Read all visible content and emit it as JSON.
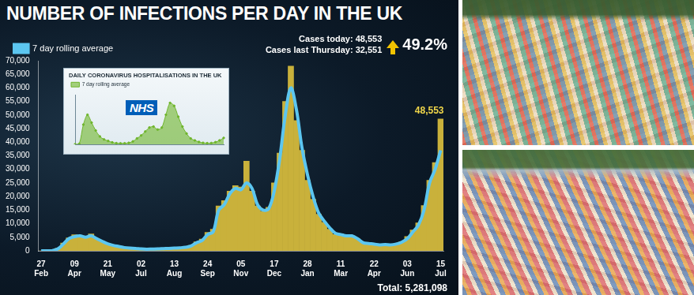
{
  "chart_data": [
    {
      "type": "bar",
      "title": "NUMBER OF INFECTIONS PER DAY IN THE UK",
      "categories": [
        "27 Feb",
        null,
        null,
        null,
        null,
        null,
        "09 Apr",
        null,
        null,
        null,
        null,
        null,
        "21 May",
        null,
        null,
        null,
        null,
        null,
        "02 Jul",
        null,
        null,
        null,
        null,
        null,
        "13 Aug",
        null,
        null,
        null,
        null,
        null,
        "24 Sep",
        null,
        null,
        null,
        null,
        null,
        "05 Nov",
        null,
        null,
        null,
        null,
        null,
        "17 Dec",
        null,
        null,
        null,
        null,
        null,
        "28 Jan",
        null,
        null,
        null,
        null,
        null,
        "11 Mar",
        null,
        null,
        null,
        null,
        null,
        "22 Apr",
        null,
        null,
        null,
        null,
        null,
        "03 Jun",
        null,
        null,
        null,
        null,
        null,
        "15 Jul"
      ],
      "series": [
        {
          "type": "bar",
          "color": "#c9b13b",
          "values": [
            0,
            30,
            150,
            900,
            2900,
            4800,
            5900,
            5300,
            4900,
            6200,
            4300,
            3400,
            2700,
            1900,
            1700,
            1300,
            1100,
            800,
            650,
            580,
            700,
            750,
            850,
            950,
            1050,
            1200,
            1400,
            2000,
            3300,
            4300,
            6800,
            8000,
            16500,
            18500,
            22000,
            24000,
            23500,
            33000,
            22000,
            16500,
            14500,
            16000,
            25000,
            36000,
            55000,
            68000,
            48000,
            37000,
            26000,
            19000,
            13500,
            10500,
            8000,
            6000,
            6200,
            5700,
            5300,
            4400,
            2800,
            2600,
            2400,
            2100,
            2400,
            2300,
            2700,
            3400,
            5300,
            7700,
            10300,
            16700,
            26000,
            32500,
            48553
          ]
        },
        {
          "type": "line",
          "name": "7 day rolling average",
          "color": "#5cc6f0",
          "values": [
            0,
            20,
            100,
            700,
            2500,
            4500,
            5200,
            5500,
            5000,
            5500,
            4500,
            3500,
            2600,
            2000,
            1600,
            1200,
            1000,
            900,
            700,
            600,
            650,
            700,
            800,
            900,
            1000,
            1100,
            1300,
            1800,
            3000,
            3800,
            6000,
            7000,
            15000,
            17000,
            21000,
            23000,
            22500,
            25000,
            23000,
            17000,
            15000,
            15500,
            22000,
            34000,
            50000,
            60000,
            52000,
            38000,
            28000,
            20000,
            14000,
            11000,
            8500,
            6500,
            6000,
            5500,
            5500,
            4500,
            3000,
            2700,
            2500,
            2200,
            2300,
            2200,
            2500,
            3200,
            4500,
            7000,
            9500,
            15000,
            25000,
            30000,
            37000
          ]
        }
      ],
      "ylim": [
        0,
        70000
      ],
      "yticks": [
        0,
        {
          "value": 5000,
          "label": "5,000"
        },
        {
          "value": 10000,
          "label": "10,000"
        },
        {
          "value": 15000,
          "label": "15,000"
        },
        {
          "value": 20000,
          "label": "20,000"
        },
        {
          "value": 25000,
          "label": "25,000"
        },
        {
          "value": 30000,
          "label": "30,000"
        },
        {
          "value": 35000,
          "label": "35,000"
        },
        {
          "value": 40000,
          "label": "40,000"
        },
        {
          "value": 45000,
          "label": "45,000"
        },
        {
          "value": 50000,
          "label": "50,000"
        },
        {
          "value": 55000,
          "label": "55,000"
        },
        {
          "value": 60000,
          "label": "60,000"
        },
        {
          "value": 65000,
          "label": "65,000"
        },
        {
          "value": 70000,
          "label": "70,000"
        }
      ],
      "grid": false,
      "legend": "top-left",
      "annotations": [
        "Cases today: 48,553",
        "Cases last Thursday: 32,551",
        "49.2%",
        "48,553",
        "Total: 5,281,098"
      ]
    },
    {
      "type": "line",
      "title": "DAILY CORONAVIRUS HOSPITALISATIONS IN THE UK",
      "categories": [
        null,
        null,
        null,
        null,
        null,
        null,
        null,
        null,
        null,
        null,
        null,
        null,
        null,
        null,
        null,
        null,
        null,
        null,
        null,
        null,
        null,
        null,
        null,
        null,
        null,
        null,
        null,
        null,
        null,
        null,
        null,
        null,
        null,
        null,
        null,
        null,
        null
      ],
      "series": [
        {
          "name": "7 day rolling average",
          "color": "#6fb52c",
          "values": [
            0,
            50,
            2000,
            3000,
            2200,
            1400,
            800,
            500,
            350,
            200,
            120,
            100,
            110,
            150,
            300,
            600,
            900,
            1300,
            1700,
            1800,
            1500,
            1700,
            3000,
            4200,
            3900,
            2800,
            1800,
            1100,
            600,
            400,
            250,
            150,
            120,
            130,
            220,
            400,
            650
          ]
        }
      ],
      "ylim": [
        0,
        5000
      ],
      "grid": false,
      "tick_labels": false,
      "legend": "top-left",
      "annotations": [
        "NHS"
      ]
    }
  ]
}
